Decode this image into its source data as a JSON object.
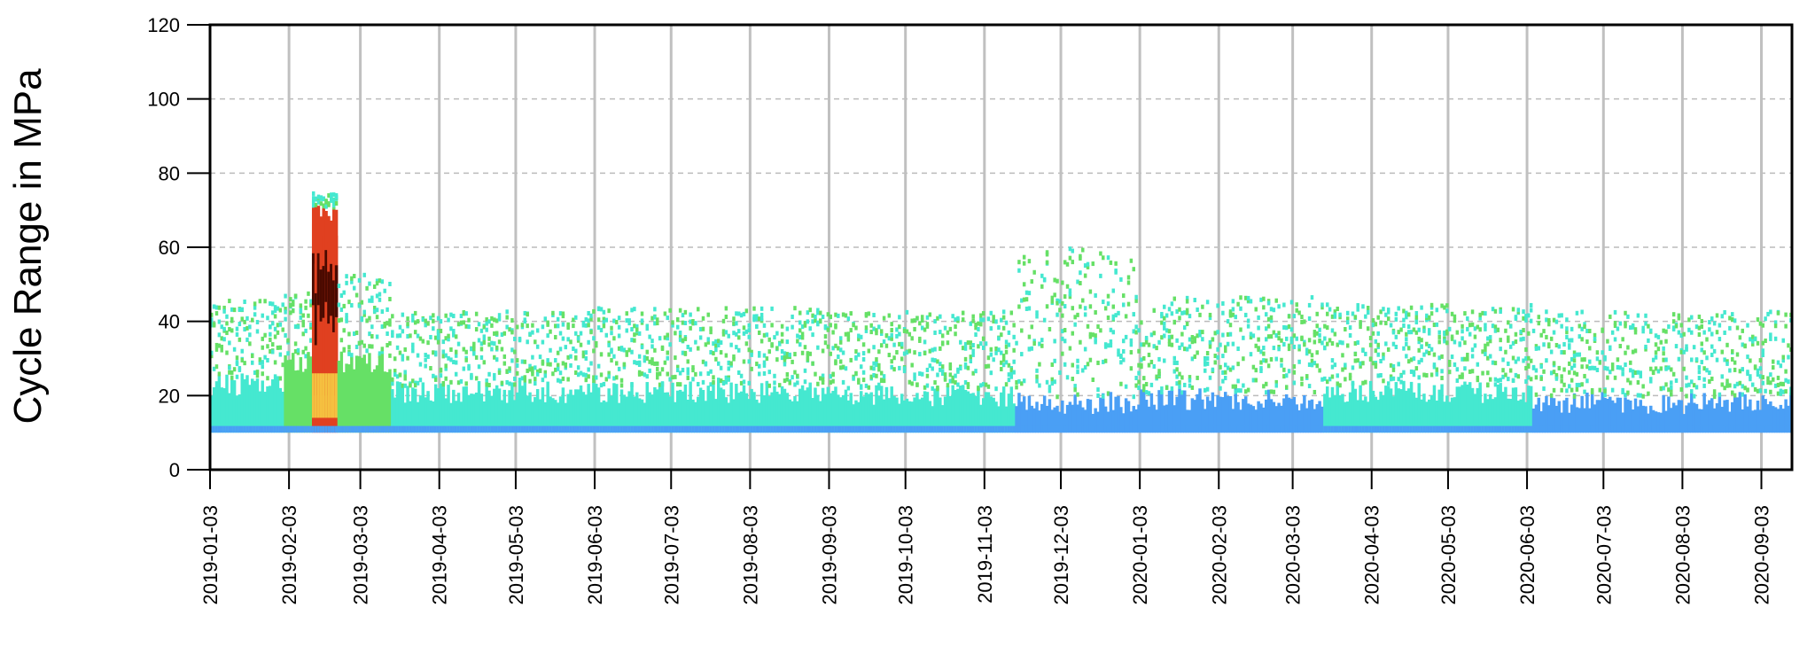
{
  "chart_data": {
    "type": "heatmap",
    "title": "",
    "xlabel": "",
    "ylabel": "Cycle Range in MPa",
    "ylim": [
      0,
      120
    ],
    "xlim": [
      "2019-01-03",
      "2020-09-15"
    ],
    "y_ticks": [
      0,
      20,
      40,
      60,
      80,
      100,
      120
    ],
    "x_ticks": [
      "2019-01-03",
      "2019-02-03",
      "2019-03-03",
      "2019-04-03",
      "2019-05-03",
      "2019-06-03",
      "2019-07-03",
      "2019-08-03",
      "2019-09-03",
      "2019-10-03",
      "2019-11-03",
      "2019-12-03",
      "2020-01-03",
      "2020-02-03",
      "2020-03-03",
      "2020-04-03",
      "2020-05-03",
      "2020-06-03",
      "2020-07-03",
      "2020-08-03",
      "2020-09-03"
    ],
    "grid": {
      "horizontal": "dashed",
      "vertical": "solid"
    },
    "colors": {
      "low": "#4a9ff5",
      "mid": "#45e8d0",
      "high": "#66e066",
      "peak": "#e04020",
      "max": "#4a0a00",
      "gridV": "#c0c0c0",
      "gridH": "#bbbbbb"
    },
    "cells": [
      {
        "start": "2019-01-03",
        "end": "2019-02-01",
        "ymin": 10,
        "ymax": 24,
        "level": "mid",
        "sparse_max": 45
      },
      {
        "start": "2019-02-01",
        "end": "2019-02-12",
        "ymin": 10,
        "ymax": 30,
        "level": "high",
        "sparse_max": 47
      },
      {
        "start": "2019-02-12",
        "end": "2019-02-22",
        "ymin": 10,
        "ymax": 70,
        "level": "peak",
        "sparse_max": 74
      },
      {
        "start": "2019-02-22",
        "end": "2019-03-15",
        "ymin": 10,
        "ymax": 30,
        "level": "high",
        "sparse_max": 52
      },
      {
        "start": "2019-03-15",
        "end": "2019-06-01",
        "ymin": 10,
        "ymax": 22,
        "level": "mid",
        "sparse_max": 42
      },
      {
        "start": "2019-06-01",
        "end": "2019-09-01",
        "ymin": 10,
        "ymax": 22,
        "level": "mid",
        "sparse_max": 43
      },
      {
        "start": "2019-09-01",
        "end": "2019-11-15",
        "ymin": 10,
        "ymax": 21,
        "level": "mid",
        "sparse_max": 42
      },
      {
        "start": "2019-11-15",
        "end": "2020-01-01",
        "ymin": 10,
        "ymax": 19,
        "level": "low",
        "sparse_max": 59
      },
      {
        "start": "2020-01-01",
        "end": "2020-03-15",
        "ymin": 10,
        "ymax": 20,
        "level": "low",
        "sparse_max": 46
      },
      {
        "start": "2020-03-15",
        "end": "2020-06-05",
        "ymin": 10,
        "ymax": 22,
        "level": "mid",
        "sparse_max": 44
      },
      {
        "start": "2020-06-05",
        "end": "2020-09-15",
        "ymin": 10,
        "ymax": 19,
        "level": "low",
        "sparse_max": 42
      }
    ]
  }
}
